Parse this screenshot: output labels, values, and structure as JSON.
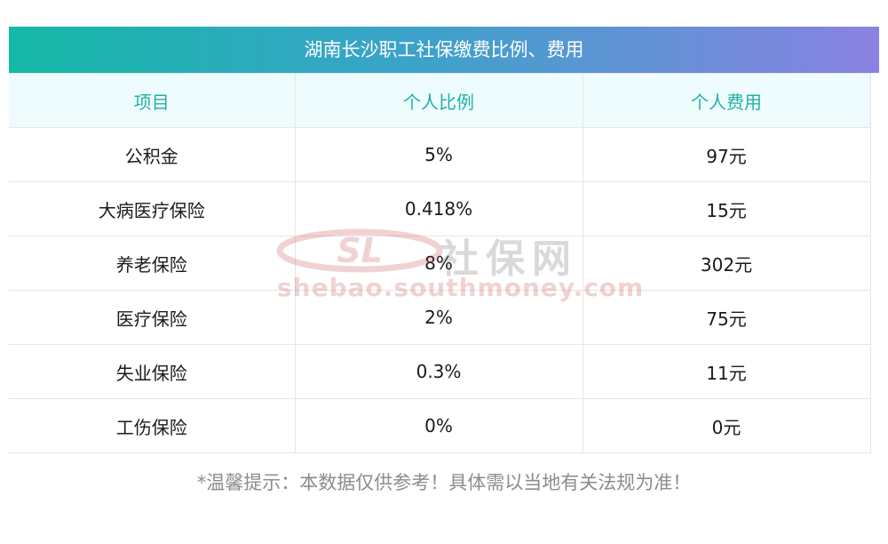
{
  "title": "湖南长沙职工社保缴费比例、费用",
  "columns": [
    "项目",
    "个人比例",
    "个人费用"
  ],
  "rows": [
    {
      "item": "公积金",
      "ratio": "5%",
      "cost": "97元"
    },
    {
      "item": "大病医疗保险",
      "ratio": "0.418%",
      "cost": "15元"
    },
    {
      "item": "养老保险",
      "ratio": "8%",
      "cost": "302元"
    },
    {
      "item": "医疗保险",
      "ratio": "2%",
      "cost": "75元"
    },
    {
      "item": "失业保险",
      "ratio": "0.3%",
      "cost": "11元"
    },
    {
      "item": "工伤保险",
      "ratio": "0%",
      "cost": "0元"
    }
  ],
  "watermark": {
    "brand": "社保网",
    "url": "shebao.southmoney.com",
    "logo_text": "SL"
  },
  "tip": "*温馨提示：本数据仅供参考！具体需以当地有关法规为准！",
  "colors": {
    "header_gradient_start": "#14b8a6",
    "header_gradient_end": "#8a82e2",
    "column_header_text": "#20b2a6",
    "column_header_bg": "#effcfd",
    "tip_text": "#8c8c8c"
  }
}
